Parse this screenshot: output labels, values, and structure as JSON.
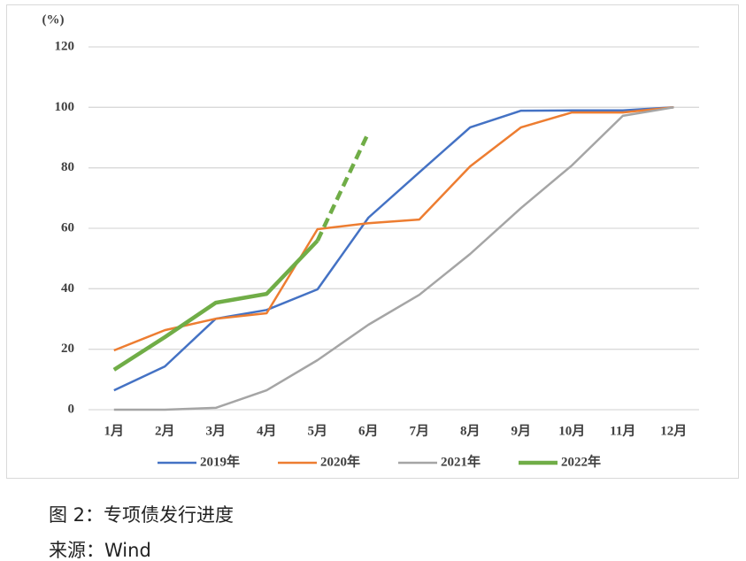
{
  "chart_data": {
    "type": "line",
    "y_label": "(%)",
    "categories": [
      "1月",
      "2月",
      "3月",
      "4月",
      "5月",
      "6月",
      "7月",
      "8月",
      "9月",
      "10月",
      "11月",
      "12月"
    ],
    "ylim": [
      0,
      120
    ],
    "yticks": [
      0,
      20,
      40,
      60,
      80,
      100,
      120
    ],
    "grid": true,
    "legend": "bottom",
    "series": [
      {
        "name": "2019年",
        "color": "#4472c4",
        "line_width": 2.5,
        "values": [
          6.4,
          14.3,
          30.1,
          33,
          39.8,
          63.5,
          78.5,
          93.4,
          98.9,
          99,
          99,
          100
        ]
      },
      {
        "name": "2020年",
        "color": "#ed7d31",
        "line_width": 2.5,
        "values": [
          19.6,
          26.3,
          30.1,
          31.9,
          59.7,
          61.7,
          62.9,
          80.5,
          93.4,
          98.3,
          98.3,
          100
        ]
      },
      {
        "name": "2021年",
        "color": "#a5a5a5",
        "line_width": 2.5,
        "values": [
          0,
          0,
          0.6,
          6.4,
          16.4,
          28.1,
          38,
          51.5,
          66.7,
          80.8,
          97.2,
          100
        ]
      },
      {
        "name": "2022年",
        "color": "#70ad47",
        "line_width": 4.5,
        "dashed_after": 4,
        "values": [
          13.2,
          24,
          35.4,
          38.3,
          55.9,
          91.6,
          null,
          null,
          null,
          null,
          null,
          null
        ]
      }
    ]
  },
  "caption": {
    "figure": "图 2：专项债发行进度",
    "source": "来源：Wind"
  }
}
